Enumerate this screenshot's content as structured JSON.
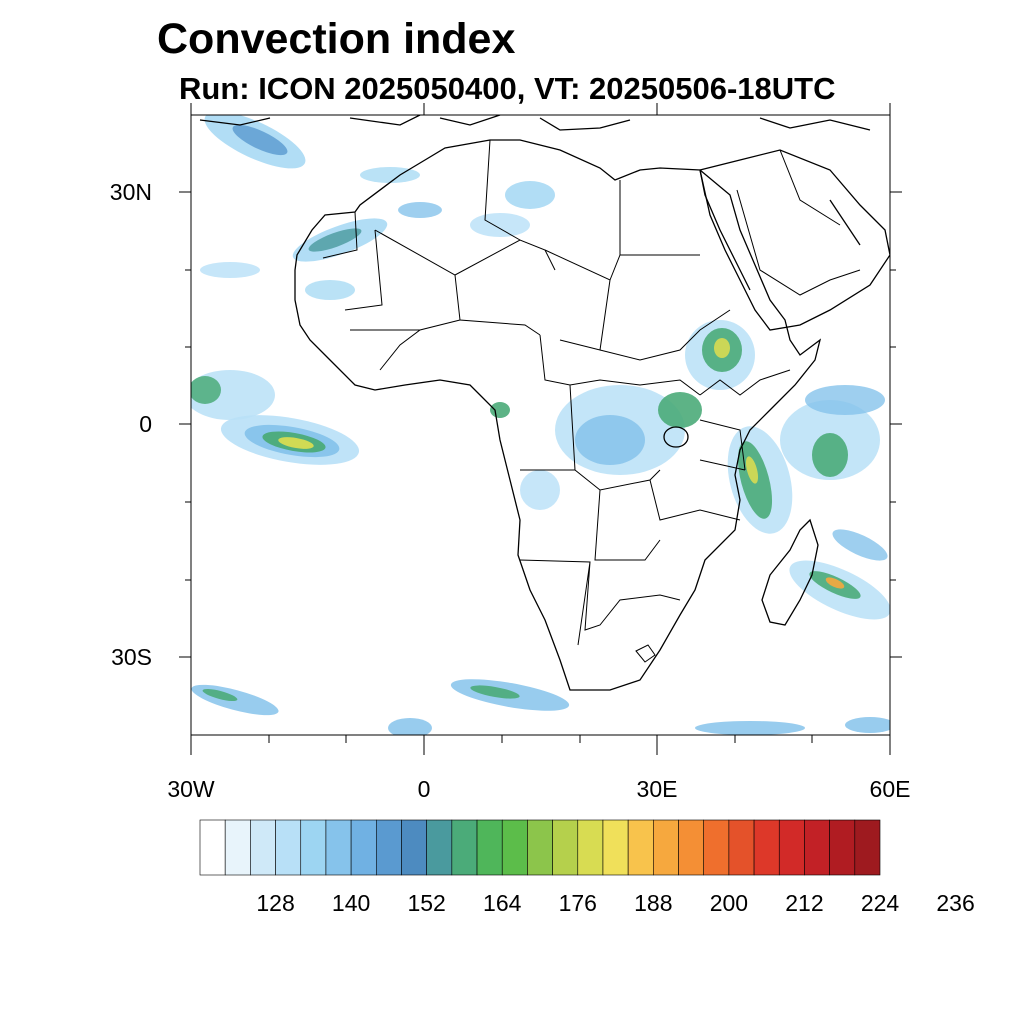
{
  "title": "Convection index",
  "subtitle": "Run: ICON 2025050400,  VT: 20250506-18UTC",
  "map": {
    "region": "Africa and surrounding oceans",
    "lon_range": [
      -30,
      60
    ],
    "lat_range": [
      -40,
      40
    ],
    "lat_labels": [
      "30N",
      "0",
      "30S"
    ],
    "lon_labels": [
      "30W",
      "0",
      "30E",
      "60E"
    ]
  },
  "colorbar": {
    "colors": [
      "#ffffff",
      "#e8f4fb",
      "#cfe9f8",
      "#b8e0f7",
      "#9dd5f2",
      "#86c3eb",
      "#70b1e3",
      "#5a9ad0",
      "#4d8bc0",
      "#4a9a9e",
      "#4bab79",
      "#4fb65a",
      "#5cbd4a",
      "#8cc54b",
      "#b5d04c",
      "#d8dc52",
      "#f0e05a",
      "#f8c34c",
      "#f6a83e",
      "#f48f35",
      "#ef6f2d",
      "#e4522a",
      "#dd3829",
      "#d22a28",
      "#c22126",
      "#b01c22",
      "#9e1a1f"
    ],
    "tick_labels": [
      "128",
      "140",
      "152",
      "164",
      "176",
      "188",
      "200",
      "212",
      "224",
      "236"
    ]
  }
}
